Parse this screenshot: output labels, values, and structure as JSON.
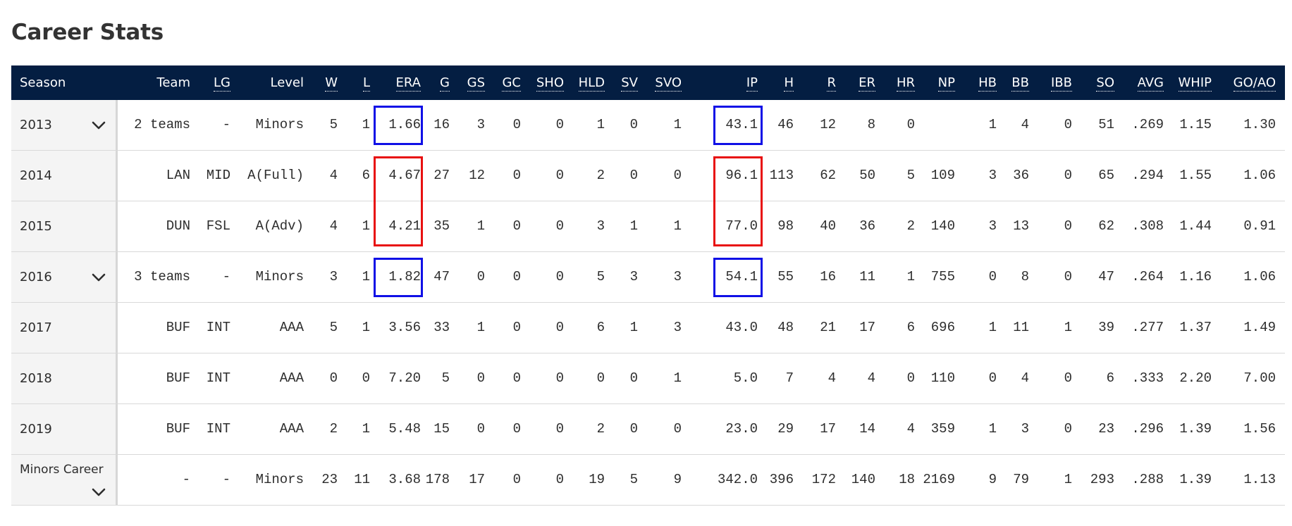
{
  "page": {
    "title": "Career Stats"
  },
  "colors": {
    "header_bg": "#041e42",
    "highlight_blue": "#1010e6",
    "highlight_red": "#e81010"
  },
  "columns": [
    {
      "key": "season",
      "label": "Season",
      "abbr": false
    },
    {
      "key": "team",
      "label": "Team",
      "abbr": false
    },
    {
      "key": "lg",
      "label": "LG",
      "abbr": true
    },
    {
      "key": "level",
      "label": "Level",
      "abbr": false
    },
    {
      "key": "w",
      "label": "W",
      "abbr": true
    },
    {
      "key": "l",
      "label": "L",
      "abbr": true
    },
    {
      "key": "era",
      "label": "ERA",
      "abbr": true
    },
    {
      "key": "g",
      "label": "G",
      "abbr": true
    },
    {
      "key": "gs",
      "label": "GS",
      "abbr": true
    },
    {
      "key": "gc",
      "label": "GC",
      "abbr": true
    },
    {
      "key": "sho",
      "label": "SHO",
      "abbr": true
    },
    {
      "key": "hld",
      "label": "HLD",
      "abbr": true
    },
    {
      "key": "sv",
      "label": "SV",
      "abbr": true
    },
    {
      "key": "svo",
      "label": "SVO",
      "abbr": true
    },
    {
      "key": "ip",
      "label": "IP",
      "abbr": true
    },
    {
      "key": "h",
      "label": "H",
      "abbr": true
    },
    {
      "key": "r",
      "label": "R",
      "abbr": true
    },
    {
      "key": "er",
      "label": "ER",
      "abbr": true
    },
    {
      "key": "hr",
      "label": "HR",
      "abbr": true
    },
    {
      "key": "np",
      "label": "NP",
      "abbr": true
    },
    {
      "key": "hb",
      "label": "HB",
      "abbr": true
    },
    {
      "key": "bb",
      "label": "BB",
      "abbr": true
    },
    {
      "key": "ibb",
      "label": "IBB",
      "abbr": true
    },
    {
      "key": "so",
      "label": "SO",
      "abbr": true
    },
    {
      "key": "avg",
      "label": "AVG",
      "abbr": true
    },
    {
      "key": "whip",
      "label": "WHIP",
      "abbr": true
    },
    {
      "key": "goao",
      "label": "GO/AO",
      "abbr": true
    }
  ],
  "rows": [
    {
      "season": "2013",
      "expandable": true,
      "values": [
        "2 teams",
        "-",
        "Minors",
        "5",
        "1",
        "1.66",
        "16",
        "3",
        "0",
        "0",
        "1",
        "0",
        "1",
        "43.1",
        "46",
        "12",
        "8",
        "0",
        "",
        "1",
        "4",
        "0",
        "51",
        ".269",
        "1.15",
        "1.30"
      ]
    },
    {
      "season": "2014",
      "expandable": false,
      "values": [
        "LAN",
        "MID",
        "A(Full)",
        "4",
        "6",
        "4.67",
        "27",
        "12",
        "0",
        "0",
        "2",
        "0",
        "0",
        "96.1",
        "113",
        "62",
        "50",
        "5",
        "109",
        "3",
        "36",
        "0",
        "65",
        ".294",
        "1.55",
        "1.06"
      ]
    },
    {
      "season": "2015",
      "expandable": false,
      "values": [
        "DUN",
        "FSL",
        "A(Adv)",
        "4",
        "1",
        "4.21",
        "35",
        "1",
        "0",
        "0",
        "3",
        "1",
        "1",
        "77.0",
        "98",
        "40",
        "36",
        "2",
        "140",
        "3",
        "13",
        "0",
        "62",
        ".308",
        "1.44",
        "0.91"
      ]
    },
    {
      "season": "2016",
      "expandable": true,
      "values": [
        "3 teams",
        "-",
        "Minors",
        "3",
        "1",
        "1.82",
        "47",
        "0",
        "0",
        "0",
        "5",
        "3",
        "3",
        "54.1",
        "55",
        "16",
        "11",
        "1",
        "755",
        "0",
        "8",
        "0",
        "47",
        ".264",
        "1.16",
        "1.06"
      ]
    },
    {
      "season": "2017",
      "expandable": false,
      "values": [
        "BUF",
        "INT",
        "AAA",
        "5",
        "1",
        "3.56",
        "33",
        "1",
        "0",
        "0",
        "6",
        "1",
        "3",
        "43.0",
        "48",
        "21",
        "17",
        "6",
        "696",
        "1",
        "11",
        "1",
        "39",
        ".277",
        "1.37",
        "1.49"
      ]
    },
    {
      "season": "2018",
      "expandable": false,
      "values": [
        "BUF",
        "INT",
        "AAA",
        "0",
        "0",
        "7.20",
        "5",
        "0",
        "0",
        "0",
        "0",
        "0",
        "1",
        "5.0",
        "7",
        "4",
        "4",
        "0",
        "110",
        "0",
        "4",
        "0",
        "6",
        ".333",
        "2.20",
        "7.00"
      ]
    },
    {
      "season": "2019",
      "expandable": false,
      "values": [
        "BUF",
        "INT",
        "AAA",
        "2",
        "1",
        "5.48",
        "15",
        "0",
        "0",
        "0",
        "2",
        "0",
        "0",
        "23.0",
        "29",
        "17",
        "14",
        "4",
        "359",
        "1",
        "3",
        "0",
        "23",
        ".296",
        "1.39",
        "1.56"
      ]
    },
    {
      "season": "Minors Career",
      "expandable": true,
      "values": [
        "-",
        "-",
        "Minors",
        "23",
        "11",
        "3.68",
        "178",
        "17",
        "0",
        "0",
        "19",
        "5",
        "9",
        "342.0",
        "396",
        "172",
        "140",
        "18",
        "2169",
        "9",
        "79",
        "1",
        "293",
        ".288",
        "1.39",
        "1.13"
      ]
    }
  ],
  "highlights": [
    {
      "color": "blue",
      "row": 0,
      "col": "era"
    },
    {
      "color": "red",
      "rows": [
        1,
        2
      ],
      "col": "era"
    },
    {
      "color": "blue",
      "row": 3,
      "col": "era"
    },
    {
      "color": "blue",
      "row": 0,
      "col": "ip"
    },
    {
      "color": "red",
      "rows": [
        1,
        2
      ],
      "col": "ip"
    },
    {
      "color": "blue",
      "row": 3,
      "col": "ip"
    }
  ]
}
